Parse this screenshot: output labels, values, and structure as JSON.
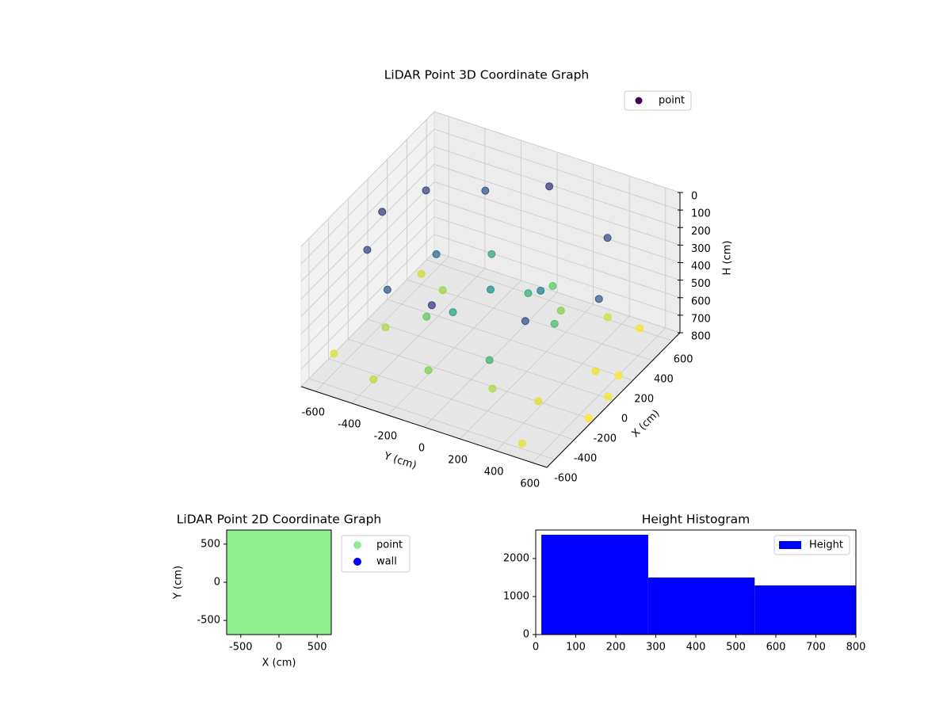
{
  "chart_data": [
    {
      "type": "scatter3d",
      "title": "LiDAR Point 3D Coordinate Graph",
      "xlabel": "X (cm)",
      "ylabel": "Y (cm)",
      "zlabel": "H (cm)",
      "xlim": [
        -680,
        680
      ],
      "ylim": [
        -680,
        680
      ],
      "zlim": [
        0,
        800
      ],
      "xticks": [
        -600,
        -400,
        -200,
        0,
        200,
        400,
        600
      ],
      "yticks": [
        -600,
        -400,
        -200,
        0,
        200,
        400,
        600
      ],
      "zticks": [
        0,
        100,
        200,
        300,
        400,
        500,
        600,
        700,
        800
      ],
      "colormap": "viridis",
      "legend": "upper right",
      "series": [
        {
          "name": "point",
          "color": "#440154",
          "x": [
            600,
            420,
            0,
            -420,
            -600,
            300,
            -300,
            500,
            -500,
            0,
            200,
            -200,
            100,
            -100,
            350,
            -350,
            550,
            -550,
            0,
            250,
            -250,
            450,
            -450,
            150,
            -150,
            50,
            380,
            -380,
            0,
            600,
            -600,
            200,
            -200,
            400,
            -400,
            0
          ],
          "y": [
            0,
            420,
            600,
            420,
            0,
            -520,
            -520,
            -300,
            -300,
            -600,
            100,
            -100,
            300,
            -300,
            200,
            200,
            350,
            -350,
            0,
            -400,
            400,
            100,
            -100,
            500,
            -500,
            250,
            -200,
            200,
            -300,
            500,
            500,
            600,
            650,
            -600,
            -650,
            650
          ],
          "z": [
            150,
            200,
            250,
            200,
            150,
            180,
            180,
            220,
            220,
            160,
            500,
            450,
            550,
            600,
            650,
            700,
            750,
            720,
            400,
            680,
            760,
            600,
            640,
            780,
            700,
            350,
            480,
            520,
            300,
            790,
            770,
            800,
            800,
            740,
            760,
            790
          ]
        }
      ]
    },
    {
      "type": "scatter",
      "title": "LiDAR Point 2D Coordinate Graph",
      "xlabel": "X (cm)",
      "ylabel": "Y (cm)",
      "xlim": [
        -685,
        685
      ],
      "ylim": [
        -685,
        685
      ],
      "xticks": [
        -500,
        0,
        500
      ],
      "yticks": [
        -500,
        0,
        500
      ],
      "legend": "outside right",
      "series": [
        {
          "name": "point",
          "color": "#90ee90",
          "x": [
            -660,
            -440,
            -220,
            0,
            220,
            440,
            660,
            -660,
            -440,
            -220,
            0,
            220,
            440,
            660,
            -660,
            -440,
            -220,
            0,
            220,
            440,
            660,
            -660,
            -440,
            -220,
            0,
            220,
            440,
            660,
            -660,
            -440,
            -220,
            0,
            220,
            440,
            660,
            -660,
            -440,
            -220,
            0,
            220,
            440,
            660,
            -660,
            -440,
            -220,
            0,
            220,
            440,
            660
          ],
          "y": [
            -660,
            -660,
            -660,
            -660,
            -660,
            -660,
            -660,
            -440,
            -440,
            -440,
            -440,
            -440,
            -440,
            -440,
            -220,
            -220,
            -220,
            -220,
            -220,
            -220,
            -220,
            0,
            0,
            0,
            0,
            0,
            0,
            0,
            220,
            220,
            220,
            220,
            220,
            220,
            220,
            440,
            440,
            440,
            440,
            440,
            440,
            440,
            660,
            660,
            660,
            660,
            660,
            660,
            660
          ]
        },
        {
          "name": "wall",
          "color": "#0000ff",
          "x": [],
          "y": []
        }
      ]
    },
    {
      "type": "histogram",
      "title": "Height Histogram",
      "xlim": [
        0,
        800
      ],
      "ylim": [
        0,
        2750
      ],
      "xticks": [
        0,
        100,
        200,
        300,
        400,
        500,
        600,
        700,
        800
      ],
      "yticks": [
        0,
        1000,
        2000
      ],
      "legend": "upper right",
      "bins": [
        14,
        281,
        547,
        814
      ],
      "series": [
        {
          "name": "Height",
          "color": "#0000ff",
          "values": [
            2625,
            1500,
            1292
          ]
        }
      ]
    }
  ]
}
